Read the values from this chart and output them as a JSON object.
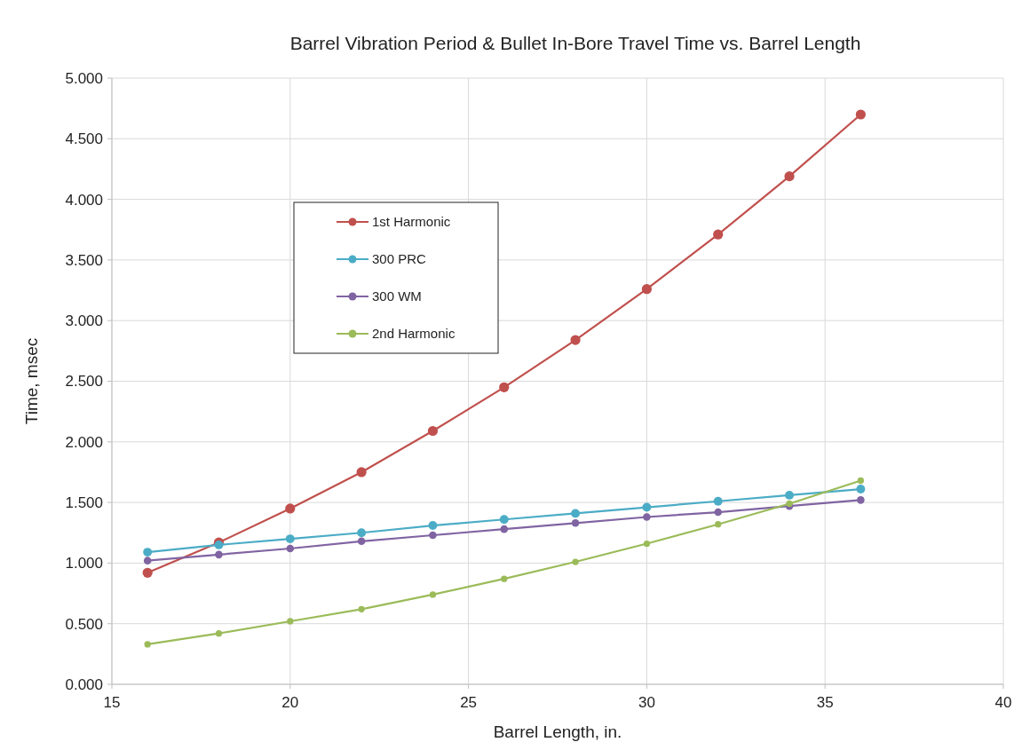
{
  "chart_data": {
    "type": "line",
    "title": "Barrel Vibration Period & Bullet In-Bore Travel Time vs. Barrel Length",
    "xlabel": "Barrel Length, in.",
    "ylabel": "Time, msec",
    "x": [
      16,
      18,
      20,
      22,
      24,
      26,
      28,
      30,
      32,
      34,
      36
    ],
    "series": [
      {
        "name": "1st Harmonic",
        "color": "#c0504d",
        "values": [
          0.92,
          1.17,
          1.45,
          1.75,
          2.09,
          2.45,
          2.84,
          3.26,
          3.71,
          4.19,
          4.7
        ]
      },
      {
        "name": "300 PRC",
        "color": "#4bacc6",
        "values": [
          1.09,
          1.15,
          1.2,
          1.25,
          1.31,
          1.36,
          1.41,
          1.46,
          1.51,
          1.56,
          1.61
        ]
      },
      {
        "name": "300 WM",
        "color": "#8064a2",
        "values": [
          1.02,
          1.07,
          1.12,
          1.18,
          1.23,
          1.28,
          1.33,
          1.38,
          1.42,
          1.47,
          1.52
        ]
      },
      {
        "name": "2nd Harmonic",
        "color": "#9bbb59",
        "values": [
          0.33,
          0.42,
          0.52,
          0.62,
          0.74,
          0.87,
          1.01,
          1.16,
          1.32,
          1.49,
          1.68
        ]
      }
    ],
    "xlim": [
      15,
      40
    ],
    "xticks": [
      15,
      20,
      25,
      30,
      35,
      40
    ],
    "ylim": [
      0,
      5
    ],
    "yticks": [
      {
        "value": 0,
        "label": "0.000"
      },
      {
        "value": 0.5,
        "label": "0.500"
      },
      {
        "value": 1,
        "label": "1.000"
      },
      {
        "value": 1.5,
        "label": "1.500"
      },
      {
        "value": 2,
        "label": "2.000"
      },
      {
        "value": 2.5,
        "label": "2.500"
      },
      {
        "value": 3,
        "label": "3.000"
      },
      {
        "value": 3.5,
        "label": "3.500"
      },
      {
        "value": 4,
        "label": "4.000"
      },
      {
        "value": 4.5,
        "label": "4.500"
      },
      {
        "value": 5,
        "label": "5.000"
      }
    ],
    "grid": true,
    "legend": "top left",
    "marker": "circle",
    "line_style": "solid"
  }
}
